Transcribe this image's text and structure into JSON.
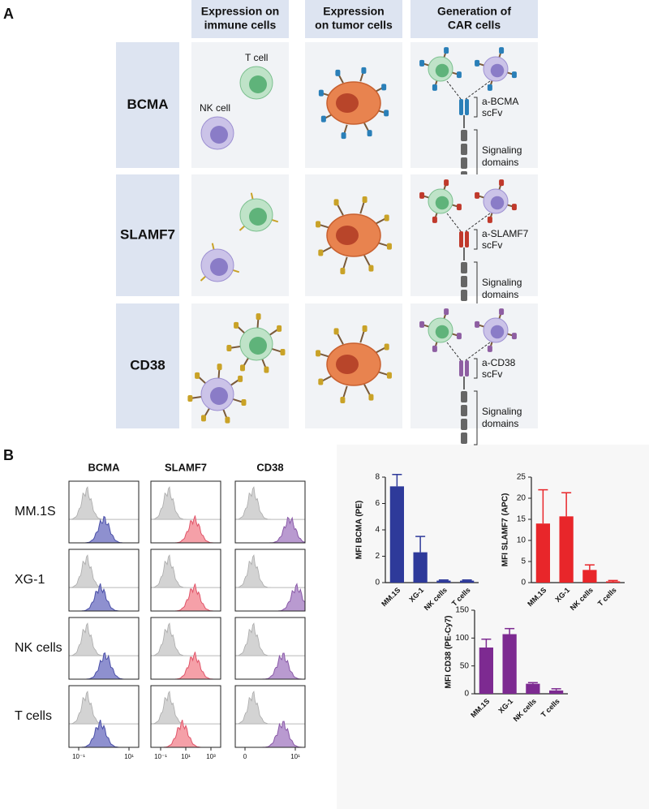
{
  "panel_a": {
    "label": "A",
    "columns": [
      [
        "Expression on",
        "immune cells"
      ],
      [
        "Expression",
        "on tumor cells"
      ],
      [
        "Generation of",
        "CAR cells"
      ]
    ],
    "cell_labels": [
      "T cell",
      "NK cell"
    ],
    "rows": [
      {
        "name": "BCMA",
        "scfv": [
          "a-BCMA",
          "scFv"
        ],
        "signaling": [
          "Signaling",
          "domains"
        ]
      },
      {
        "name": "SLAMF7",
        "scfv": [
          "a-SLAMF7",
          "scFv"
        ],
        "signaling": [
          "Signaling",
          "domains"
        ]
      },
      {
        "name": "CD38",
        "scfv": [
          "a-CD38",
          "scFv"
        ],
        "signaling": [
          "Signaling",
          "domains"
        ]
      }
    ]
  },
  "panel_b": {
    "label": "B",
    "histograms": {
      "columns": [
        "BCMA",
        "SLAMF7",
        "CD38"
      ],
      "rows": [
        "MM.1S",
        "XG-1",
        "NK cells",
        "T cells"
      ],
      "x_tick_labels": [
        [
          "10⁻¹",
          "10¹"
        ],
        [
          "10⁻¹",
          "10¹",
          "10³"
        ],
        [
          "0",
          "10¹"
        ]
      ]
    }
  },
  "chart_data": [
    {
      "type": "bar",
      "y_label": "MFI BCMA (PE)",
      "categories": [
        "MM.1S",
        "XG-1",
        "NK cells",
        "T cells"
      ],
      "values": [
        7.3,
        2.3,
        0.15,
        0.15
      ],
      "errors": [
        0.9,
        1.2,
        0.05,
        0.05
      ],
      "color": "#2e3a9a",
      "ylim": [
        0,
        8
      ],
      "yticks": [
        0,
        2,
        4,
        6,
        8
      ]
    },
    {
      "type": "bar",
      "y_label": "MFI SLAMF7 (APC)",
      "categories": [
        "MM.1S",
        "XG-1",
        "NK cells",
        "T cells"
      ],
      "values": [
        14,
        15.7,
        3,
        0.3
      ],
      "errors": [
        8,
        5.6,
        1.2,
        0.2
      ],
      "color": "#e8262a",
      "ylim": [
        0,
        25
      ],
      "yticks": [
        0,
        5,
        10,
        15,
        20,
        25
      ]
    },
    {
      "type": "bar",
      "y_label": "MFI CD38 (PE-Cy7)",
      "categories": [
        "MM.1S",
        "XG-1",
        "NK cells",
        "T cells"
      ],
      "values": [
        83,
        107,
        18,
        6
      ],
      "errors": [
        15,
        10,
        2,
        3
      ],
      "color": "#7d2a91",
      "ylim": [
        0,
        150
      ],
      "yticks": [
        0,
        50,
        100,
        150
      ]
    }
  ]
}
